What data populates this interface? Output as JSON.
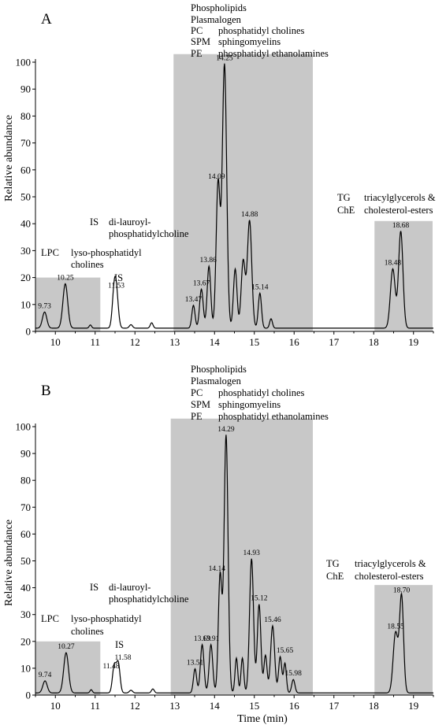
{
  "chart_data": [
    {
      "type": "line",
      "panel_label": "A",
      "xlim": [
        9.5,
        19.5
      ],
      "ylim": [
        0,
        100
      ],
      "xticks": [
        10,
        11,
        12,
        13,
        14,
        15,
        16,
        17,
        18,
        19
      ],
      "yticks": [
        0,
        10,
        20,
        30,
        40,
        50,
        60,
        70,
        80,
        90,
        100
      ],
      "ylabel": "Relative abundance",
      "xlabel": "",
      "baseline": 1.2,
      "regions": [
        {
          "name": "lpc",
          "x0": 9.5,
          "x1": 11.13,
          "ytop": 20
        },
        {
          "name": "phospholipids",
          "x0": 12.97,
          "x1": 16.47,
          "ytop": 103
        },
        {
          "name": "tg",
          "x0": 18.02,
          "x1": 19.48,
          "ytop": 41
        }
      ],
      "peaks": [
        {
          "x": 9.73,
          "y": 6,
          "w": 0.055,
          "label": "9.73"
        },
        {
          "x": 10.25,
          "y": 16.5,
          "w": 0.06,
          "label": "10.25"
        },
        {
          "x": 10.88,
          "y": 1.2,
          "w": 0.03,
          "label": ""
        },
        {
          "x": 11.47,
          "y": 10,
          "w": 0.045,
          "label": ""
        },
        {
          "x": 11.53,
          "y": 13.5,
          "w": 0.05,
          "label": "11.53"
        },
        {
          "x": 11.9,
          "y": 1.3,
          "w": 0.04,
          "label": ""
        },
        {
          "x": 12.42,
          "y": 2,
          "w": 0.035,
          "label": ""
        },
        {
          "x": 13.47,
          "y": 8.5,
          "w": 0.04,
          "label": "13.47"
        },
        {
          "x": 13.67,
          "y": 14.5,
          "w": 0.045,
          "label": "13.67"
        },
        {
          "x": 13.86,
          "y": 23,
          "w": 0.045,
          "label": "13.86"
        },
        {
          "x": 14.09,
          "y": 54,
          "w": 0.05,
          "label": "14.09"
        },
        {
          "x": 14.25,
          "y": 98,
          "w": 0.055,
          "label": "14.25"
        },
        {
          "x": 14.52,
          "y": 22,
          "w": 0.045,
          "label": ""
        },
        {
          "x": 14.72,
          "y": 25,
          "w": 0.05,
          "label": ""
        },
        {
          "x": 14.88,
          "y": 40,
          "w": 0.055,
          "label": "14.88"
        },
        {
          "x": 15.14,
          "y": 13,
          "w": 0.04,
          "label": "15.14"
        },
        {
          "x": 15.42,
          "y": 3.5,
          "w": 0.035,
          "label": ""
        },
        {
          "x": 18.48,
          "y": 22,
          "w": 0.06,
          "label": "18.48"
        },
        {
          "x": 18.68,
          "y": 36,
          "w": 0.055,
          "label": "18.68"
        }
      ],
      "annotations": {
        "pl": [
          "Phospholipids",
          "Plasmalogen"
        ],
        "pl_pc_abbr": "PC",
        "pl_pc_desc": "phosphatidyl cholines",
        "pl_spm_abbr": "SPM",
        "pl_spm_desc": "sphingomyelins",
        "pl_pe_abbr": "PE",
        "pl_pe_desc": "phosphatidyl ethanolamines",
        "is_abbr": "IS",
        "is_desc1": "di-lauroyl-",
        "is_desc2": "phosphatidylcholine",
        "tg_abbr": "TG",
        "tg_desc": "triacylglycerols &",
        "che_abbr": "ChE",
        "che_desc": "cholesterol-esters",
        "lpc_abbr": "LPC",
        "lpc_desc1": "lyso-phosphatidyl",
        "lpc_desc2": "cholines",
        "is_peak": "IS"
      }
    },
    {
      "type": "line",
      "panel_label": "B",
      "xlim": [
        9.5,
        19.5
      ],
      "ylim": [
        0,
        100
      ],
      "xticks": [
        10,
        11,
        12,
        13,
        14,
        15,
        16,
        17,
        18,
        19
      ],
      "yticks": [
        0,
        10,
        20,
        30,
        40,
        50,
        60,
        70,
        80,
        90,
        100
      ],
      "ylabel": "Relative abundance",
      "xlabel": "Time (min)",
      "baseline": 0.8,
      "regions": [
        {
          "name": "lpc",
          "x0": 9.5,
          "x1": 11.13,
          "ytop": 20
        },
        {
          "name": "phospholipids",
          "x0": 12.9,
          "x1": 16.47,
          "ytop": 103
        },
        {
          "name": "tg",
          "x0": 18.02,
          "x1": 19.48,
          "ytop": 41
        }
      ],
      "peaks": [
        {
          "x": 9.74,
          "y": 4.5,
          "w": 0.055,
          "label": "9.74"
        },
        {
          "x": 10.27,
          "y": 15,
          "w": 0.06,
          "label": "10.27"
        },
        {
          "x": 10.9,
          "y": 1.2,
          "w": 0.03,
          "label": ""
        },
        {
          "x": 11.48,
          "y": 10,
          "w": 0.045,
          "label": "11.48"
        },
        {
          "x": 11.58,
          "y": 11,
          "w": 0.045,
          "label": "11.58"
        },
        {
          "x": 11.9,
          "y": 1,
          "w": 0.04,
          "label": ""
        },
        {
          "x": 12.45,
          "y": 1.5,
          "w": 0.035,
          "label": ""
        },
        {
          "x": 13.51,
          "y": 9,
          "w": 0.04,
          "label": "13.51"
        },
        {
          "x": 13.69,
          "y": 18,
          "w": 0.045,
          "label": "13.69"
        },
        {
          "x": 13.91,
          "y": 18,
          "w": 0.045,
          "label": "13.91"
        },
        {
          "x": 14.14,
          "y": 44,
          "w": 0.045,
          "label": "14.14"
        },
        {
          "x": 14.29,
          "y": 96,
          "w": 0.05,
          "label": "14.29"
        },
        {
          "x": 14.55,
          "y": 13,
          "w": 0.035,
          "label": ""
        },
        {
          "x": 14.7,
          "y": 13,
          "w": 0.035,
          "label": ""
        },
        {
          "x": 14.93,
          "y": 50,
          "w": 0.05,
          "label": "14.93"
        },
        {
          "x": 15.12,
          "y": 33,
          "w": 0.045,
          "label": "15.12"
        },
        {
          "x": 15.28,
          "y": 14,
          "w": 0.04,
          "label": ""
        },
        {
          "x": 15.46,
          "y": 25,
          "w": 0.05,
          "label": "15.46"
        },
        {
          "x": 15.65,
          "y": 13.5,
          "w": 0.04,
          "label": "15.65"
        },
        {
          "x": 15.77,
          "y": 11,
          "w": 0.035,
          "label": ""
        },
        {
          "x": 15.98,
          "y": 5,
          "w": 0.04,
          "label": "15.98"
        },
        {
          "x": 18.55,
          "y": 22.5,
          "w": 0.06,
          "label": "18.55"
        },
        {
          "x": 18.7,
          "y": 36,
          "w": 0.05,
          "label": "18.70"
        }
      ],
      "annotations": {
        "pl": [
          "Phospholipids",
          "Plasmalogen"
        ],
        "pl_pc_abbr": "PC",
        "pl_pc_desc": "phosphatidyl cholines",
        "pl_spm_abbr": "SPM",
        "pl_spm_desc": "sphingomyelins",
        "pl_pe_abbr": "PE",
        "pl_pe_desc": "phosphatidyl ethanolamines",
        "is_abbr": "IS",
        "is_desc1": "di-lauroyl-",
        "is_desc2": "phosphatidylcholine",
        "tg_abbr": "TG",
        "tg_desc": "triacylglycerols &",
        "che_abbr": "ChE",
        "che_desc": "cholesterol-esters",
        "lpc_abbr": "LPC",
        "lpc_desc1": "lyso-phosphatidyl",
        "lpc_desc2": "cholines",
        "is_peak": "IS"
      }
    }
  ]
}
